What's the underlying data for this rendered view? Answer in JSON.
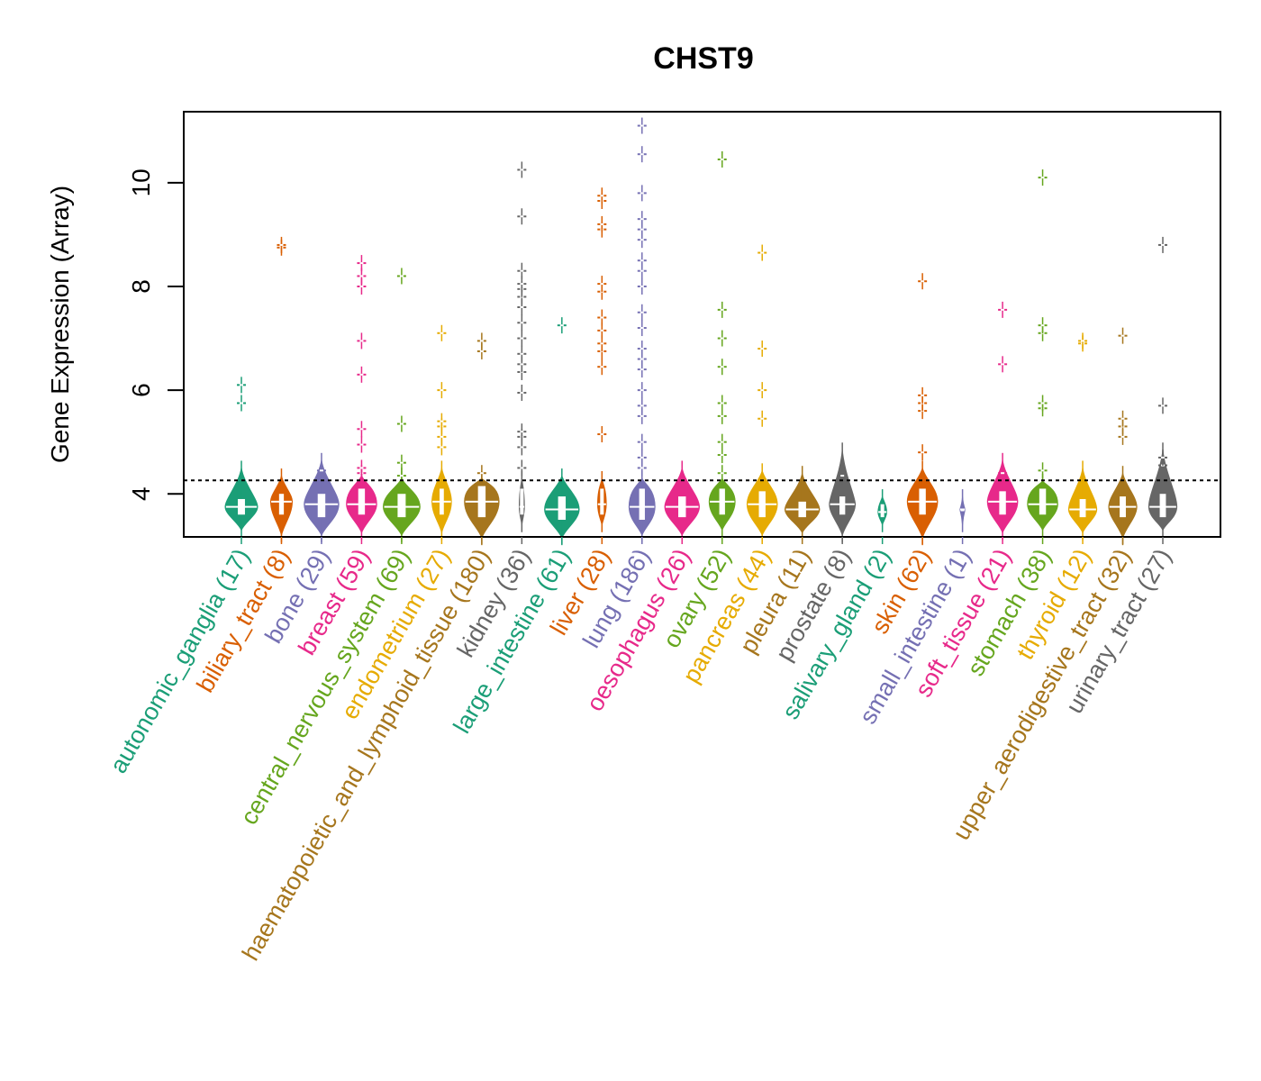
{
  "chart_data": {
    "type": "violin",
    "title": "CHST9",
    "xlabel": "",
    "ylabel": "Gene Expression (Array)",
    "ylim": [
      3.17,
      11.37
    ],
    "yticks": [
      4,
      6,
      8,
      10
    ],
    "grid": false,
    "legend": "none",
    "reference_line": {
      "y": 4.26,
      "style": "dotted",
      "color": "#000000"
    },
    "categories": [
      {
        "name": "autonomic_ganglia",
        "n": 17,
        "label": "autonomic_ganglia (17)",
        "color": "#1B9E77",
        "median": 3.75,
        "q1": 3.6,
        "q3": 3.9,
        "min": 3.3,
        "max": 4.5,
        "width": 0.75,
        "points": [
          5.75,
          6.1
        ]
      },
      {
        "name": "biliary_tract",
        "n": 8,
        "label": "biliary_tract (8)",
        "color": "#D95F02",
        "median": 3.85,
        "q1": 3.6,
        "q3": 4.0,
        "min": 3.2,
        "max": 4.35,
        "width": 0.5,
        "points": [
          8.75,
          8.8
        ]
      },
      {
        "name": "bone",
        "n": 29,
        "label": "bone (29)",
        "color": "#7570B3",
        "median": 3.8,
        "q1": 3.55,
        "q3": 4.0,
        "min": 3.2,
        "max": 4.65,
        "width": 0.8,
        "points": [
          4.45
        ]
      },
      {
        "name": "breast",
        "n": 59,
        "label": "breast (59)",
        "color": "#E7298A",
        "median": 3.8,
        "q1": 3.6,
        "q3": 4.1,
        "min": 3.25,
        "max": 4.35,
        "width": 0.7,
        "points": [
          4.4,
          4.5,
          4.95,
          5.25,
          6.3,
          6.95,
          8.0,
          8.2,
          8.45
        ]
      },
      {
        "name": "central_nervous_system",
        "n": 69,
        "label": "central_nervous_system (69)",
        "color": "#66A61E",
        "median": 3.75,
        "q1": 3.55,
        "q3": 4.0,
        "min": 3.2,
        "max": 4.3,
        "width": 0.85,
        "points": [
          4.35,
          4.6,
          5.35,
          8.2
        ]
      },
      {
        "name": "endometrium",
        "n": 27,
        "label": "endometrium (27)",
        "color": "#E6AB02",
        "median": 3.85,
        "q1": 3.6,
        "q3": 4.1,
        "min": 3.25,
        "max": 4.5,
        "width": 0.45,
        "points": [
          4.9,
          5.1,
          5.3,
          5.4,
          6.0,
          7.1
        ]
      },
      {
        "name": "haematopoietic_and_lymphoid_tissue",
        "n": 180,
        "label": "haematopoietic_and_lymphoid_tissue (180)",
        "color": "#A6761D",
        "median": 3.85,
        "q1": 3.55,
        "q3": 4.15,
        "min": 3.15,
        "max": 4.3,
        "width": 0.8,
        "points": [
          4.4,
          6.75,
          6.95
        ]
      },
      {
        "name": "kidney",
        "n": 36,
        "label": "kidney (36)",
        "color": "#666666",
        "median": 3.75,
        "q1": 3.6,
        "q3": 4.1,
        "min": 3.4,
        "max": 4.3,
        "width": 0.12,
        "points": [
          4.5,
          4.9,
          5.1,
          5.2,
          5.95,
          6.35,
          6.5,
          6.7,
          7.0,
          7.3,
          7.6,
          7.8,
          7.95,
          8.05,
          8.3,
          9.35,
          10.25
        ]
      },
      {
        "name": "large_intestine",
        "n": 61,
        "label": "large_intestine (61)",
        "color": "#1B9E77",
        "median": 3.7,
        "q1": 3.5,
        "q3": 3.95,
        "min": 3.15,
        "max": 4.35,
        "width": 0.8,
        "points": [
          7.25
        ]
      },
      {
        "name": "liver",
        "n": 28,
        "label": "liver (28)",
        "color": "#D95F02",
        "median": 3.8,
        "q1": 3.6,
        "q3": 4.1,
        "min": 3.4,
        "max": 4.3,
        "width": 0.2,
        "points": [
          5.15,
          6.45,
          6.75,
          6.9,
          7.15,
          7.4,
          7.9,
          8.05,
          9.1,
          9.2,
          9.65,
          9.75
        ]
      },
      {
        "name": "lung",
        "n": 186,
        "label": "lung (186)",
        "color": "#7570B3",
        "median": 3.75,
        "q1": 3.5,
        "q3": 4.1,
        "min": 3.2,
        "max": 4.3,
        "width": 0.6,
        "points": [
          4.5,
          4.7,
          5.0,
          5.5,
          5.7,
          6.0,
          6.4,
          6.6,
          6.8,
          7.2,
          7.5,
          8.0,
          8.3,
          8.5,
          8.9,
          9.1,
          9.3,
          9.8,
          10.55,
          11.1
        ]
      },
      {
        "name": "oesophagus",
        "n": 26,
        "label": "oesophagus (26)",
        "color": "#E7298A",
        "median": 3.75,
        "q1": 3.55,
        "q3": 3.95,
        "min": 3.2,
        "max": 4.5,
        "width": 0.8,
        "points": []
      },
      {
        "name": "ovary",
        "n": 52,
        "label": "ovary (52)",
        "color": "#66A61E",
        "median": 3.85,
        "q1": 3.6,
        "q3": 4.1,
        "min": 3.3,
        "max": 4.3,
        "width": 0.6,
        "points": [
          4.4,
          4.75,
          5.0,
          5.5,
          5.75,
          6.45,
          7.0,
          7.55,
          10.45
        ]
      },
      {
        "name": "pancreas",
        "n": 44,
        "label": "pancreas (44)",
        "color": "#E6AB02",
        "median": 3.8,
        "q1": 3.55,
        "q3": 4.05,
        "min": 3.2,
        "max": 4.45,
        "width": 0.7,
        "points": [
          5.45,
          6.0,
          6.8,
          8.65
        ]
      },
      {
        "name": "pleura",
        "n": 11,
        "label": "pleura (11)",
        "color": "#A6761D",
        "median": 3.7,
        "q1": 3.55,
        "q3": 3.85,
        "min": 3.25,
        "max": 4.4,
        "width": 0.8,
        "points": []
      },
      {
        "name": "prostate",
        "n": 8,
        "label": "prostate (8)",
        "color": "#666666",
        "median": 3.8,
        "q1": 3.6,
        "q3": 3.95,
        "min": 3.2,
        "max": 4.85,
        "width": 0.6,
        "points": [
          4.35
        ]
      },
      {
        "name": "salivary_gland",
        "n": 2,
        "label": "salivary_gland (2)",
        "color": "#1B9E77",
        "median": 3.65,
        "q1": 3.55,
        "q3": 3.8,
        "min": 3.4,
        "max": 3.95,
        "width": 0.2,
        "points": []
      },
      {
        "name": "skin",
        "n": 62,
        "label": "skin (62)",
        "color": "#D95F02",
        "median": 3.85,
        "q1": 3.6,
        "q3": 4.1,
        "min": 3.15,
        "max": 4.5,
        "width": 0.7,
        "points": [
          4.8,
          5.6,
          5.75,
          5.9,
          8.1
        ]
      },
      {
        "name": "small_intestine",
        "n": 1,
        "label": "small_intestine (1)",
        "color": "#7570B3",
        "median": 3.7,
        "q1": 3.7,
        "q3": 3.7,
        "min": 3.4,
        "max": 3.95,
        "width": 0.12,
        "points": []
      },
      {
        "name": "soft_tissue",
        "n": 21,
        "label": "soft_tissue (21)",
        "color": "#E7298A",
        "median": 3.85,
        "q1": 3.6,
        "q3": 4.05,
        "min": 3.25,
        "max": 4.65,
        "width": 0.7,
        "points": [
          4.4,
          6.5,
          7.55
        ]
      },
      {
        "name": "stomach",
        "n": 38,
        "label": "stomach (38)",
        "color": "#66A61E",
        "median": 3.8,
        "q1": 3.6,
        "q3": 4.1,
        "min": 3.3,
        "max": 4.25,
        "width": 0.7,
        "points": [
          4.45,
          5.65,
          5.75,
          7.1,
          7.25,
          10.1
        ]
      },
      {
        "name": "thyroid",
        "n": 12,
        "label": "thyroid (12)",
        "color": "#E6AB02",
        "median": 3.7,
        "q1": 3.55,
        "q3": 3.9,
        "min": 3.25,
        "max": 4.5,
        "width": 0.65,
        "points": [
          6.9,
          6.95
        ]
      },
      {
        "name": "upper_aerodigestive_tract",
        "n": 32,
        "label": "upper_aerodigestive_tract (32)",
        "color": "#A6761D",
        "median": 3.75,
        "q1": 3.55,
        "q3": 3.95,
        "min": 3.15,
        "max": 4.4,
        "width": 0.65,
        "points": [
          5.1,
          5.3,
          5.45,
          7.05
        ]
      },
      {
        "name": "urinary_tract",
        "n": 27,
        "label": "urinary_tract (27)",
        "color": "#666666",
        "median": 3.75,
        "q1": 3.55,
        "q3": 4.0,
        "min": 3.3,
        "max": 4.85,
        "width": 0.65,
        "points": [
          4.55,
          4.7,
          5.7,
          8.8
        ]
      }
    ]
  }
}
